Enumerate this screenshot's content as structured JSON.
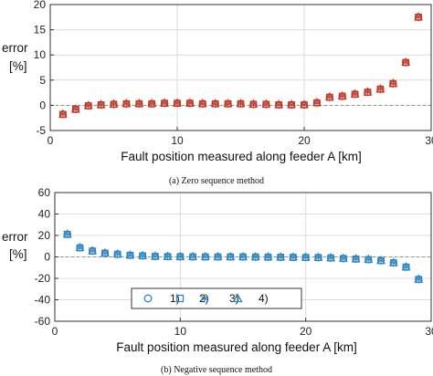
{
  "charts": [
    {
      "caption": "(a) Zero sequence method",
      "chart_data": {
        "type": "scatter",
        "xlabel": "Fault position measured along feeder A [km]",
        "ylabel_line1": "error",
        "ylabel_line2": "[%]",
        "xlim": [
          0,
          30
        ],
        "ylim": [
          -5,
          20
        ],
        "xticks": [
          0,
          10,
          20,
          30
        ],
        "yticks": [
          -5,
          0,
          5,
          10,
          15,
          20
        ],
        "grid": true,
        "zero_line": true,
        "marker_color": "#c0392b",
        "markers": [
          "circle",
          "square",
          "star",
          "triangle"
        ],
        "x": [
          1,
          2,
          3,
          4,
          5,
          6,
          7,
          8,
          9,
          10,
          11,
          12,
          13,
          14,
          15,
          16,
          17,
          18,
          19,
          20,
          21,
          22,
          23,
          24,
          25,
          26,
          27,
          28,
          29
        ],
        "values": [
          -1.8,
          -0.8,
          -0.1,
          0.1,
          0.2,
          0.3,
          0.3,
          0.3,
          0.4,
          0.4,
          0.4,
          0.3,
          0.3,
          0.3,
          0.3,
          0.2,
          0.2,
          0.1,
          0.1,
          0.1,
          0.5,
          1.6,
          1.8,
          2.2,
          2.6,
          3.2,
          4.3,
          8.5,
          17.5
        ]
      }
    },
    {
      "caption": "(b) Negative sequence method",
      "chart_data": {
        "type": "scatter",
        "xlabel": "Fault position measured along feeder A [km]",
        "ylabel_line1": "error",
        "ylabel_line2": "[%]",
        "xlim": [
          0,
          30
        ],
        "ylim": [
          -60,
          60
        ],
        "xticks": [
          0,
          10,
          20,
          30
        ],
        "yticks": [
          -60,
          -40,
          -20,
          0,
          20,
          40,
          60
        ],
        "grid": true,
        "zero_line": true,
        "marker_color": "#2e86c1",
        "markers": [
          "circle",
          "square",
          "star",
          "triangle"
        ],
        "legend": {
          "placement": "bottom-center",
          "labels": [
            "1)",
            "2)",
            "3)",
            "4)"
          ]
        },
        "x": [
          1,
          2,
          3,
          4,
          5,
          6,
          7,
          8,
          9,
          10,
          11,
          12,
          13,
          14,
          15,
          16,
          17,
          18,
          19,
          20,
          21,
          22,
          23,
          24,
          25,
          26,
          27,
          28,
          29
        ],
        "values": [
          21,
          8.5,
          5.5,
          3.5,
          2.5,
          1.5,
          1,
          0.5,
          0.3,
          0.2,
          0.1,
          0,
          0,
          0,
          0,
          -0.1,
          -0.2,
          -0.3,
          -0.4,
          -0.5,
          -0.6,
          -1,
          -1.5,
          -2,
          -2.5,
          -3.5,
          -5.5,
          -9.5,
          -21
        ]
      }
    }
  ]
}
